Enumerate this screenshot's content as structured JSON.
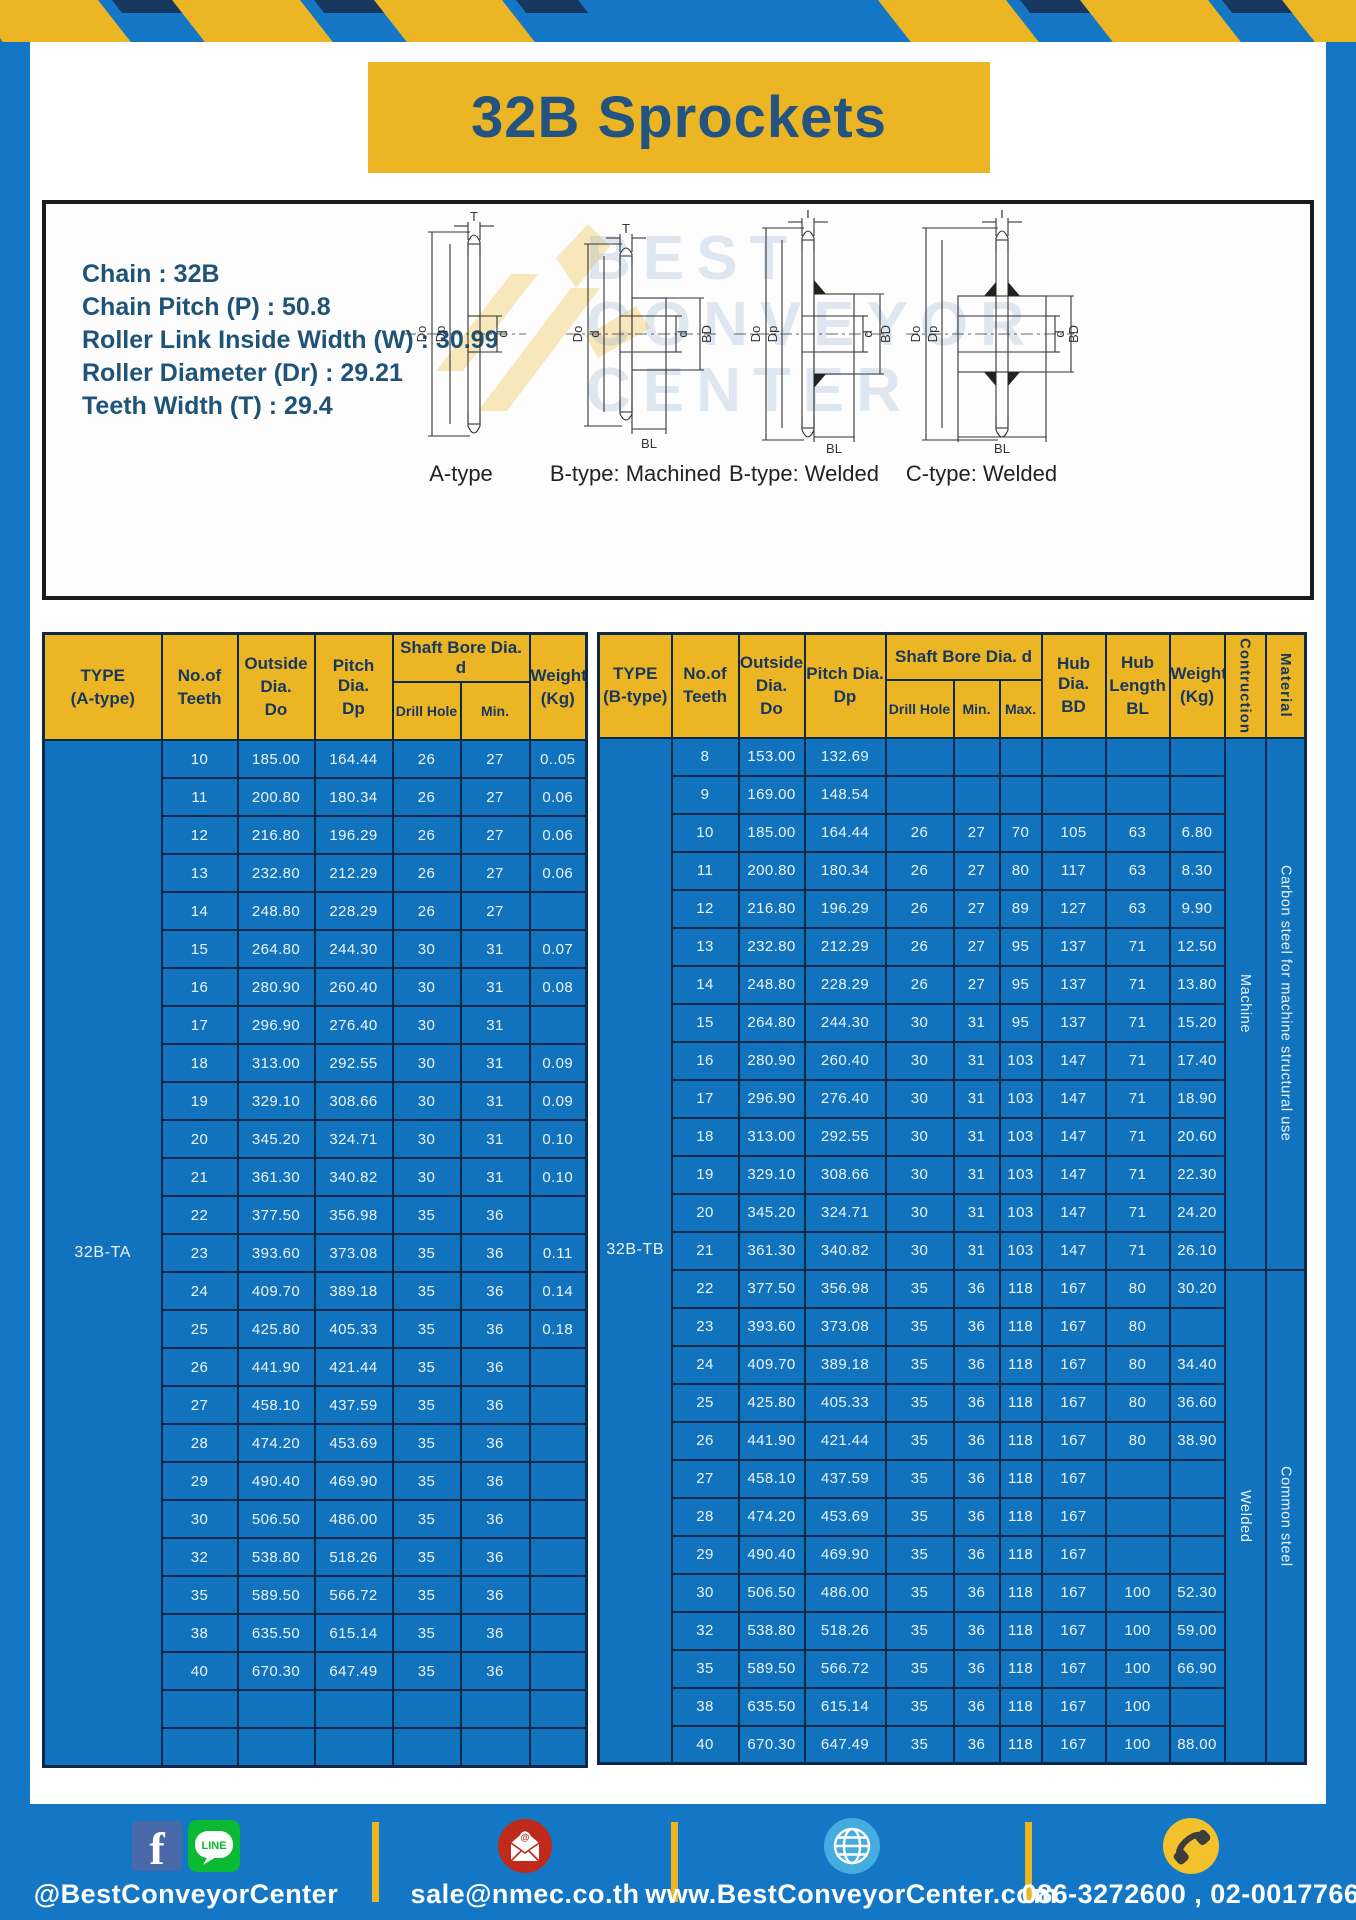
{
  "title": "32B Sprockets",
  "colors": {
    "frame_blue": "#1377C6",
    "gold": "#ECB524",
    "navy": "#17375E",
    "table_blue": "#1173BE",
    "grid_navy": "#0D2947"
  },
  "diagram": {
    "specs": [
      "Chain  : 32B",
      "Chain Pitch (P)  :  50.8",
      "Roller Link Inside Width (W)  :  30.99",
      "Roller Diameter (Dr)  : 29.21",
      "Teeth Width (T)  :  29.4"
    ],
    "types": [
      "A-type",
      "B-type: Machined",
      "B-type: Welded",
      "C-type: Welded"
    ],
    "dims": {
      "t": "T",
      "do": "Do",
      "dp": "Dp",
      "d": "d",
      "bd": "BD",
      "bl": "BL"
    },
    "watermark": [
      "BEST",
      "CONVEYOR",
      "CENTER"
    ]
  },
  "table_a": {
    "type_label": "32B-TA",
    "header": {
      "type": [
        "TYPE",
        "(A-type)"
      ],
      "teeth": [
        "No.of",
        "Teeth"
      ],
      "outside": [
        "Outside",
        "Dia.",
        "Do"
      ],
      "pitch": [
        "Pitch Dia.",
        "Dp"
      ],
      "shaft_bore": "Shaft Bore Dia. d",
      "drill": "Drill Hole",
      "min": "Min.",
      "weight": [
        "Weight",
        "(Kg)"
      ]
    },
    "rows": [
      [
        "10",
        "185.00",
        "164.44",
        "26",
        "27",
        "0..05"
      ],
      [
        "11",
        "200.80",
        "180.34",
        "26",
        "27",
        "0.06"
      ],
      [
        "12",
        "216.80",
        "196.29",
        "26",
        "27",
        "0.06"
      ],
      [
        "13",
        "232.80",
        "212.29",
        "26",
        "27",
        "0.06"
      ],
      [
        "14",
        "248.80",
        "228.29",
        "26",
        "27",
        ""
      ],
      [
        "15",
        "264.80",
        "244.30",
        "30",
        "31",
        "0.07"
      ],
      [
        "16",
        "280.90",
        "260.40",
        "30",
        "31",
        "0.08"
      ],
      [
        "17",
        "296.90",
        "276.40",
        "30",
        "31",
        ""
      ],
      [
        "18",
        "313.00",
        "292.55",
        "30",
        "31",
        "0.09"
      ],
      [
        "19",
        "329.10",
        "308.66",
        "30",
        "31",
        "0.09"
      ],
      [
        "20",
        "345.20",
        "324.71",
        "30",
        "31",
        "0.10"
      ],
      [
        "21",
        "361.30",
        "340.82",
        "30",
        "31",
        "0.10"
      ],
      [
        "22",
        "377.50",
        "356.98",
        "35",
        "36",
        ""
      ],
      [
        "23",
        "393.60",
        "373.08",
        "35",
        "36",
        "0.11"
      ],
      [
        "24",
        "409.70",
        "389.18",
        "35",
        "36",
        "0.14"
      ],
      [
        "25",
        "425.80",
        "405.33",
        "35",
        "36",
        "0.18"
      ],
      [
        "26",
        "441.90",
        "421.44",
        "35",
        "36",
        ""
      ],
      [
        "27",
        "458.10",
        "437.59",
        "35",
        "36",
        ""
      ],
      [
        "28",
        "474.20",
        "453.69",
        "35",
        "36",
        ""
      ],
      [
        "29",
        "490.40",
        "469.90",
        "35",
        "36",
        ""
      ],
      [
        "30",
        "506.50",
        "486.00",
        "35",
        "36",
        ""
      ],
      [
        "32",
        "538.80",
        "518.26",
        "35",
        "36",
        ""
      ],
      [
        "35",
        "589.50",
        "566.72",
        "35",
        "36",
        ""
      ],
      [
        "38",
        "635.50",
        "615.14",
        "35",
        "36",
        ""
      ],
      [
        "40",
        "670.30",
        "647.49",
        "35",
        "36",
        ""
      ],
      [
        "",
        "",
        "",
        "",
        "",
        ""
      ],
      [
        "",
        "",
        "",
        "",
        "",
        ""
      ]
    ]
  },
  "table_b": {
    "type_label": "32B-TB",
    "header": {
      "type": [
        "TYPE",
        "(B-type)"
      ],
      "teeth": [
        "No.of",
        "Teeth"
      ],
      "outside": [
        "Outside",
        "Dia.",
        "Do"
      ],
      "pitch": [
        "Pitch Dia.",
        "Dp"
      ],
      "shaft_bore": "Shaft Bore Dia. d",
      "drill": "Drill Hole",
      "min": "Min.",
      "max": "Max.",
      "hub_dia": [
        "Hub Dia.",
        "BD"
      ],
      "hub_len": [
        "Hub",
        "Length",
        "BL"
      ],
      "weight": [
        "Weight",
        "(Kg)"
      ],
      "construction": "Contruction",
      "material": "Material"
    },
    "rows": [
      [
        "8",
        "153.00",
        "132.69",
        "",
        "",
        "",
        "",
        "",
        ""
      ],
      [
        "9",
        "169.00",
        "148.54",
        "",
        "",
        "",
        "",
        "",
        ""
      ],
      [
        "10",
        "185.00",
        "164.44",
        "26",
        "27",
        "70",
        "105",
        "63",
        "6.80"
      ],
      [
        "11",
        "200.80",
        "180.34",
        "26",
        "27",
        "80",
        "117",
        "63",
        "8.30"
      ],
      [
        "12",
        "216.80",
        "196.29",
        "26",
        "27",
        "89",
        "127",
        "63",
        "9.90"
      ],
      [
        "13",
        "232.80",
        "212.29",
        "26",
        "27",
        "95",
        "137",
        "71",
        "12.50"
      ],
      [
        "14",
        "248.80",
        "228.29",
        "26",
        "27",
        "95",
        "137",
        "71",
        "13.80"
      ],
      [
        "15",
        "264.80",
        "244.30",
        "30",
        "31",
        "95",
        "137",
        "71",
        "15.20"
      ],
      [
        "16",
        "280.90",
        "260.40",
        "30",
        "31",
        "103",
        "147",
        "71",
        "17.40"
      ],
      [
        "17",
        "296.90",
        "276.40",
        "30",
        "31",
        "103",
        "147",
        "71",
        "18.90"
      ],
      [
        "18",
        "313.00",
        "292.55",
        "30",
        "31",
        "103",
        "147",
        "71",
        "20.60"
      ],
      [
        "19",
        "329.10",
        "308.66",
        "30",
        "31",
        "103",
        "147",
        "71",
        "22.30"
      ],
      [
        "20",
        "345.20",
        "324.71",
        "30",
        "31",
        "103",
        "147",
        "71",
        "24.20"
      ],
      [
        "21",
        "361.30",
        "340.82",
        "30",
        "31",
        "103",
        "147",
        "71",
        "26.10"
      ],
      [
        "22",
        "377.50",
        "356.98",
        "35",
        "36",
        "118",
        "167",
        "80",
        "30.20"
      ],
      [
        "23",
        "393.60",
        "373.08",
        "35",
        "36",
        "118",
        "167",
        "80",
        ""
      ],
      [
        "24",
        "409.70",
        "389.18",
        "35",
        "36",
        "118",
        "167",
        "80",
        "34.40"
      ],
      [
        "25",
        "425.80",
        "405.33",
        "35",
        "36",
        "118",
        "167",
        "80",
        "36.60"
      ],
      [
        "26",
        "441.90",
        "421.44",
        "35",
        "36",
        "118",
        "167",
        "80",
        "38.90"
      ],
      [
        "27",
        "458.10",
        "437.59",
        "35",
        "36",
        "118",
        "167",
        "",
        ""
      ],
      [
        "28",
        "474.20",
        "453.69",
        "35",
        "36",
        "118",
        "167",
        "",
        ""
      ],
      [
        "29",
        "490.40",
        "469.90",
        "35",
        "36",
        "118",
        "167",
        "",
        ""
      ],
      [
        "30",
        "506.50",
        "486.00",
        "35",
        "36",
        "118",
        "167",
        "100",
        "52.30"
      ],
      [
        "32",
        "538.80",
        "518.26",
        "35",
        "36",
        "118",
        "167",
        "100",
        "59.00"
      ],
      [
        "35",
        "589.50",
        "566.72",
        "35",
        "36",
        "118",
        "167",
        "100",
        "66.90"
      ],
      [
        "38",
        "635.50",
        "615.14",
        "35",
        "36",
        "118",
        "167",
        "100",
        ""
      ],
      [
        "40",
        "670.30",
        "647.49",
        "35",
        "36",
        "118",
        "167",
        "100",
        "88.00"
      ]
    ],
    "construction_groups": [
      {
        "label": "Machine",
        "rows": 14
      },
      {
        "label": "Welded",
        "rows": 13
      }
    ],
    "material_groups": [
      {
        "label": "Carbon steel for machine structural use",
        "rows": 14
      },
      {
        "label": "Common steel",
        "rows": 13
      }
    ]
  },
  "footer": {
    "items": [
      {
        "fb_letter": "f",
        "line_text": "LINE",
        "label": "@BestConveyorCenter"
      },
      {
        "label": "sale@nmec.co.th"
      },
      {
        "label": "www.BestConveyorCenter.com"
      },
      {
        "label": "086-3272600 , 02-0017766"
      }
    ]
  }
}
